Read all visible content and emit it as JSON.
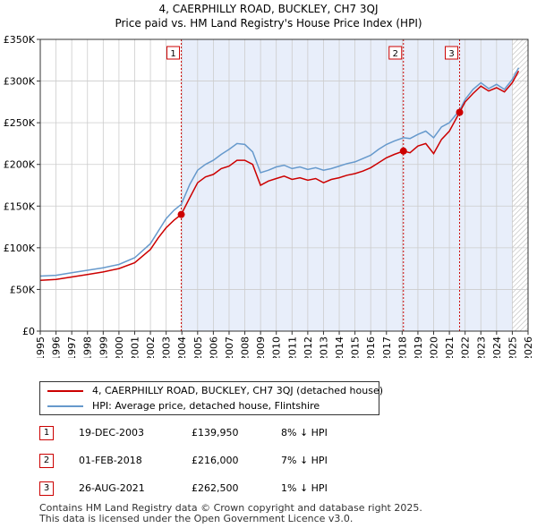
{
  "title_line1": "4, CAERPHILLY ROAD, BUCKLEY, CH7 3QJ",
  "title_line2": "Price paid vs. HM Land Registry's House Price Index (HPI)",
  "chart_data": {
    "type": "line",
    "x_range": [
      1995,
      2026
    ],
    "y_range": [
      0,
      350000
    ],
    "y_ticks": [
      {
        "value": 0,
        "label": "£0"
      },
      {
        "value": 50000,
        "label": "£50K"
      },
      {
        "value": 100000,
        "label": "£100K"
      },
      {
        "value": 150000,
        "label": "£150K"
      },
      {
        "value": 200000,
        "label": "£200K"
      },
      {
        "value": 250000,
        "label": "£250K"
      },
      {
        "value": 300000,
        "label": "£300K"
      },
      {
        "value": 350000,
        "label": "£350K"
      }
    ],
    "x_ticks": [
      "1995",
      "1996",
      "1997",
      "1998",
      "1999",
      "2000",
      "2001",
      "2002",
      "2003",
      "2004",
      "2005",
      "2006",
      "2007",
      "2008",
      "2009",
      "2010",
      "2011",
      "2012",
      "2013",
      "2014",
      "2015",
      "2016",
      "2017",
      "2018",
      "2019",
      "2020",
      "2021",
      "2022",
      "2023",
      "2024",
      "2025",
      "2026"
    ],
    "colors": {
      "property": "#cc0000",
      "hpi": "#6699cc",
      "shade": "#e8eefa",
      "grid": "#cccccc"
    },
    "shaded_from": 2003.96,
    "forecast_from": 2025.0,
    "series": [
      {
        "name": "4, CAERPHILLY ROAD, BUCKLEY, CH7 3QJ (detached house)",
        "color": "#cc0000",
        "points": [
          [
            1995.0,
            61000
          ],
          [
            1996.0,
            62000
          ],
          [
            1997.0,
            65000
          ],
          [
            1998.0,
            68000
          ],
          [
            1999.0,
            71000
          ],
          [
            2000.0,
            75000
          ],
          [
            2001.0,
            82000
          ],
          [
            2002.0,
            98000
          ],
          [
            2002.5,
            112000
          ],
          [
            2003.0,
            124000
          ],
          [
            2003.5,
            133000
          ],
          [
            2003.96,
            139950
          ],
          [
            2004.5,
            160000
          ],
          [
            2005.0,
            178000
          ],
          [
            2005.5,
            185000
          ],
          [
            2006.0,
            188000
          ],
          [
            2006.5,
            195000
          ],
          [
            2007.0,
            198000
          ],
          [
            2007.5,
            205000
          ],
          [
            2008.0,
            205000
          ],
          [
            2008.5,
            200000
          ],
          [
            2009.0,
            175000
          ],
          [
            2009.5,
            180000
          ],
          [
            2010.0,
            183000
          ],
          [
            2010.5,
            186000
          ],
          [
            2011.0,
            182000
          ],
          [
            2011.5,
            184000
          ],
          [
            2012.0,
            181000
          ],
          [
            2012.5,
            183000
          ],
          [
            2013.0,
            178000
          ],
          [
            2013.5,
            182000
          ],
          [
            2014.0,
            184000
          ],
          [
            2014.5,
            187000
          ],
          [
            2015.0,
            189000
          ],
          [
            2015.5,
            192000
          ],
          [
            2016.0,
            196000
          ],
          [
            2016.5,
            202000
          ],
          [
            2017.0,
            208000
          ],
          [
            2017.5,
            212000
          ],
          [
            2018.08,
            216000
          ],
          [
            2018.5,
            214000
          ],
          [
            2019.0,
            222000
          ],
          [
            2019.5,
            225000
          ],
          [
            2020.0,
            213000
          ],
          [
            2020.5,
            230000
          ],
          [
            2021.0,
            240000
          ],
          [
            2021.65,
            262500
          ],
          [
            2022.0,
            275000
          ],
          [
            2022.5,
            285000
          ],
          [
            2023.0,
            294000
          ],
          [
            2023.5,
            288000
          ],
          [
            2024.0,
            292000
          ],
          [
            2024.5,
            287000
          ],
          [
            2025.0,
            298000
          ],
          [
            2025.4,
            312000
          ]
        ]
      },
      {
        "name": "HPI: Average price, detached house, Flintshire",
        "color": "#6699cc",
        "points": [
          [
            1995.0,
            66000
          ],
          [
            1996.0,
            67000
          ],
          [
            1997.0,
            70000
          ],
          [
            1998.0,
            73000
          ],
          [
            1999.0,
            76000
          ],
          [
            2000.0,
            80000
          ],
          [
            2001.0,
            88000
          ],
          [
            2002.0,
            105000
          ],
          [
            2002.5,
            120000
          ],
          [
            2003.0,
            135000
          ],
          [
            2003.5,
            145000
          ],
          [
            2003.96,
            152000
          ],
          [
            2004.5,
            176000
          ],
          [
            2005.0,
            193000
          ],
          [
            2005.5,
            200000
          ],
          [
            2006.0,
            205000
          ],
          [
            2006.5,
            212000
          ],
          [
            2007.0,
            218000
          ],
          [
            2007.5,
            225000
          ],
          [
            2008.0,
            224000
          ],
          [
            2008.5,
            215000
          ],
          [
            2009.0,
            190000
          ],
          [
            2009.5,
            193000
          ],
          [
            2010.0,
            197000
          ],
          [
            2010.5,
            199000
          ],
          [
            2011.0,
            195000
          ],
          [
            2011.5,
            197000
          ],
          [
            2012.0,
            194000
          ],
          [
            2012.5,
            196000
          ],
          [
            2013.0,
            193000
          ],
          [
            2013.5,
            195000
          ],
          [
            2014.0,
            198000
          ],
          [
            2014.5,
            201000
          ],
          [
            2015.0,
            203000
          ],
          [
            2015.5,
            207000
          ],
          [
            2016.0,
            211000
          ],
          [
            2016.5,
            218000
          ],
          [
            2017.0,
            224000
          ],
          [
            2017.5,
            228000
          ],
          [
            2018.08,
            232000
          ],
          [
            2018.5,
            231000
          ],
          [
            2019.0,
            236000
          ],
          [
            2019.5,
            240000
          ],
          [
            2020.0,
            232000
          ],
          [
            2020.5,
            245000
          ],
          [
            2021.0,
            250000
          ],
          [
            2021.65,
            265000
          ],
          [
            2022.0,
            278000
          ],
          [
            2022.5,
            290000
          ],
          [
            2023.0,
            298000
          ],
          [
            2023.5,
            291000
          ],
          [
            2024.0,
            296000
          ],
          [
            2024.5,
            290000
          ],
          [
            2025.0,
            302000
          ],
          [
            2025.4,
            316000
          ]
        ]
      }
    ],
    "sales": [
      {
        "label": "1",
        "x": 2003.96,
        "value": 139950
      },
      {
        "label": "2",
        "x": 2018.08,
        "value": 216000
      },
      {
        "label": "3",
        "x": 2021.65,
        "value": 262500
      }
    ]
  },
  "legend": {
    "property_label": "4, CAERPHILLY ROAD, BUCKLEY, CH7 3QJ (detached house)",
    "hpi_label": "HPI: Average price, detached house, Flintshire"
  },
  "sales_table": [
    {
      "num": "1",
      "date": "19-DEC-2003",
      "price": "£139,950",
      "hpi": "8% ↓ HPI"
    },
    {
      "num": "2",
      "date": "01-FEB-2018",
      "price": "£216,000",
      "hpi": "7% ↓ HPI"
    },
    {
      "num": "3",
      "date": "26-AUG-2021",
      "price": "£262,500",
      "hpi": "1% ↓ HPI"
    }
  ],
  "footer_line1": "Contains HM Land Registry data © Crown copyright and database right 2025.",
  "footer_line2": "This data is licensed under the Open Government Licence v3.0."
}
